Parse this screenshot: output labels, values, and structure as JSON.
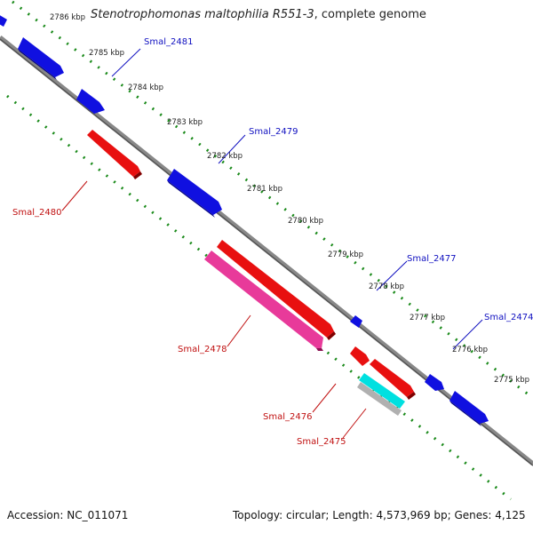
{
  "title": {
    "organism": "Stenotrophomonas maltophilia R551-3",
    "suffix": ", complete genome"
  },
  "footer": {
    "accession": "Accession: NC_011071",
    "summary": "Topology: circular; Length: 4,573,969 bp; Genes: 4,125"
  },
  "colors": {
    "forward_gene": "#1010e0",
    "reverse_gene": "#e81010",
    "pseudo_gene": "#e83a9a",
    "rna_gene": "#00e0e0",
    "backbone": "#777777",
    "tick": "#1a8a1a",
    "forward_label": "#1010c0",
    "reverse_label": "#c01010"
  },
  "scale_labels": [
    "2786 kbp",
    "2785 kbp",
    "2784 kbp",
    "2783 kbp",
    "2782 kbp",
    "2781 kbp",
    "2780 kbp",
    "2779 kbp",
    "2778 kbp",
    "2777 kbp",
    "2776 kbp",
    "2775 kbp"
  ],
  "gene_labels": [
    {
      "name": "Smal_2481",
      "strand": "forward"
    },
    {
      "name": "Smal_2480",
      "strand": "reverse"
    },
    {
      "name": "Smal_2479",
      "strand": "forward"
    },
    {
      "name": "Smal_2478",
      "strand": "reverse"
    },
    {
      "name": "Smal_2477",
      "strand": "forward"
    },
    {
      "name": "Smal_2476",
      "strand": "reverse"
    },
    {
      "name": "Smal_2475",
      "strand": "reverse"
    },
    {
      "name": "Smal_2474",
      "strand": "forward"
    }
  ]
}
